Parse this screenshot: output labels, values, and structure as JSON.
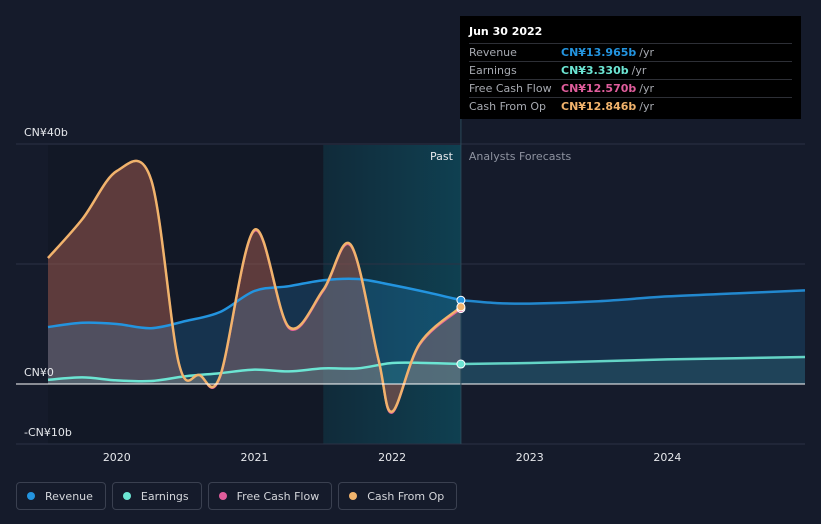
{
  "tooltip": {
    "date": "Jun 30 2022",
    "rows": [
      {
        "label": "Revenue",
        "value": "CN¥13.965b",
        "unit": "/yr",
        "color": "#2394df"
      },
      {
        "label": "Earnings",
        "value": "CN¥3.330b",
        "unit": "/yr",
        "color": "#6ce5d3"
      },
      {
        "label": "Free Cash Flow",
        "value": "CN¥12.570b",
        "unit": "/yr",
        "color": "#e05d9c"
      },
      {
        "label": "Cash From Op",
        "value": "CN¥12.846b",
        "unit": "/yr",
        "color": "#f1b36c"
      }
    ]
  },
  "legend": [
    {
      "label": "Revenue",
      "color": "#2394df"
    },
    {
      "label": "Earnings",
      "color": "#6ce5d3"
    },
    {
      "label": "Free Cash Flow",
      "color": "#e05d9c"
    },
    {
      "label": "Cash From Op",
      "color": "#f1b36c"
    }
  ],
  "chart_data": {
    "type": "line",
    "y_tick_labels": [
      {
        "label": "CN¥40b",
        "value": 40
      },
      {
        "label": "CN¥0",
        "value": 0
      },
      {
        "label": "-CN¥10b",
        "value": -10
      }
    ],
    "ylim": [
      -10,
      40
    ],
    "xlim": [
      2019.5,
      2025.0
    ],
    "x_tick_labels": [
      {
        "label": "2020",
        "value": 2020
      },
      {
        "label": "2021",
        "value": 2021
      },
      {
        "label": "2022",
        "value": 2022
      },
      {
        "label": "2023",
        "value": 2023
      },
      {
        "label": "2024",
        "value": 2024
      }
    ],
    "past_label": "Past",
    "forecast_label": "Analysts Forecasts",
    "divider_x": 2022.5,
    "highlight_range": [
      2021.5,
      2022.5
    ],
    "colors": {
      "revenue": "#2394df",
      "earnings": "#6ce5d3",
      "fcf": "#e05d9c",
      "cfo": "#f1b36c",
      "highlight": "#0e4d5f"
    },
    "series": [
      {
        "name": "Revenue",
        "key": "revenue",
        "points": [
          [
            2019.5,
            9.5
          ],
          [
            2019.75,
            10.2
          ],
          [
            2020.0,
            10.0
          ],
          [
            2020.25,
            9.3
          ],
          [
            2020.5,
            10.5
          ],
          [
            2020.75,
            12.0
          ],
          [
            2021.0,
            15.5
          ],
          [
            2021.25,
            16.3
          ],
          [
            2021.5,
            17.3
          ],
          [
            2021.75,
            17.5
          ],
          [
            2022.0,
            16.5
          ],
          [
            2022.25,
            15.3
          ],
          [
            2022.5,
            13.965
          ]
        ]
      },
      {
        "name": "Revenue forecast",
        "key": "revenue",
        "forecast": true,
        "points": [
          [
            2022.5,
            13.965
          ],
          [
            2022.75,
            13.5
          ],
          [
            2023.0,
            13.4
          ],
          [
            2023.5,
            13.8
          ],
          [
            2024.0,
            14.6
          ],
          [
            2024.5,
            15.1
          ],
          [
            2025.0,
            15.6
          ]
        ]
      },
      {
        "name": "Earnings",
        "key": "earnings",
        "points": [
          [
            2019.5,
            0.7
          ],
          [
            2019.75,
            1.1
          ],
          [
            2020.0,
            0.6
          ],
          [
            2020.25,
            0.5
          ],
          [
            2020.5,
            1.3
          ],
          [
            2020.75,
            1.8
          ],
          [
            2021.0,
            2.4
          ],
          [
            2021.25,
            2.1
          ],
          [
            2021.5,
            2.6
          ],
          [
            2021.75,
            2.6
          ],
          [
            2022.0,
            3.5
          ],
          [
            2022.25,
            3.5
          ],
          [
            2022.5,
            3.33
          ]
        ]
      },
      {
        "name": "Earnings forecast",
        "key": "earnings",
        "forecast": true,
        "points": [
          [
            2022.5,
            3.33
          ],
          [
            2023.0,
            3.5
          ],
          [
            2023.5,
            3.8
          ],
          [
            2024.0,
            4.1
          ],
          [
            2024.5,
            4.3
          ],
          [
            2025.0,
            4.5
          ]
        ]
      },
      {
        "name": "Free Cash Flow",
        "key": "fcf",
        "points": [
          [
            2019.5,
            21.0
          ],
          [
            2019.75,
            27.5
          ],
          [
            2020.0,
            35.5
          ],
          [
            2020.25,
            34.0
          ],
          [
            2020.45,
            3.5
          ],
          [
            2020.6,
            1.5
          ],
          [
            2020.75,
            1.1
          ],
          [
            2021.0,
            25.5
          ],
          [
            2021.25,
            9.3
          ],
          [
            2021.5,
            15.5
          ],
          [
            2021.7,
            23.0
          ],
          [
            2021.9,
            4.0
          ],
          [
            2022.0,
            -4.8
          ],
          [
            2022.2,
            6.5
          ],
          [
            2022.5,
            12.57
          ]
        ]
      },
      {
        "name": "Cash From Op",
        "key": "cfo",
        "points": [
          [
            2019.5,
            21.0
          ],
          [
            2019.75,
            27.5
          ],
          [
            2020.0,
            35.5
          ],
          [
            2020.25,
            34.0
          ],
          [
            2020.45,
            3.5
          ],
          [
            2020.6,
            1.5
          ],
          [
            2020.75,
            1.3
          ],
          [
            2021.0,
            25.7
          ],
          [
            2021.25,
            9.5
          ],
          [
            2021.5,
            15.7
          ],
          [
            2021.7,
            23.2
          ],
          [
            2021.9,
            4.2
          ],
          [
            2022.0,
            -4.6
          ],
          [
            2022.2,
            6.7
          ],
          [
            2022.5,
            12.846
          ]
        ]
      }
    ]
  }
}
